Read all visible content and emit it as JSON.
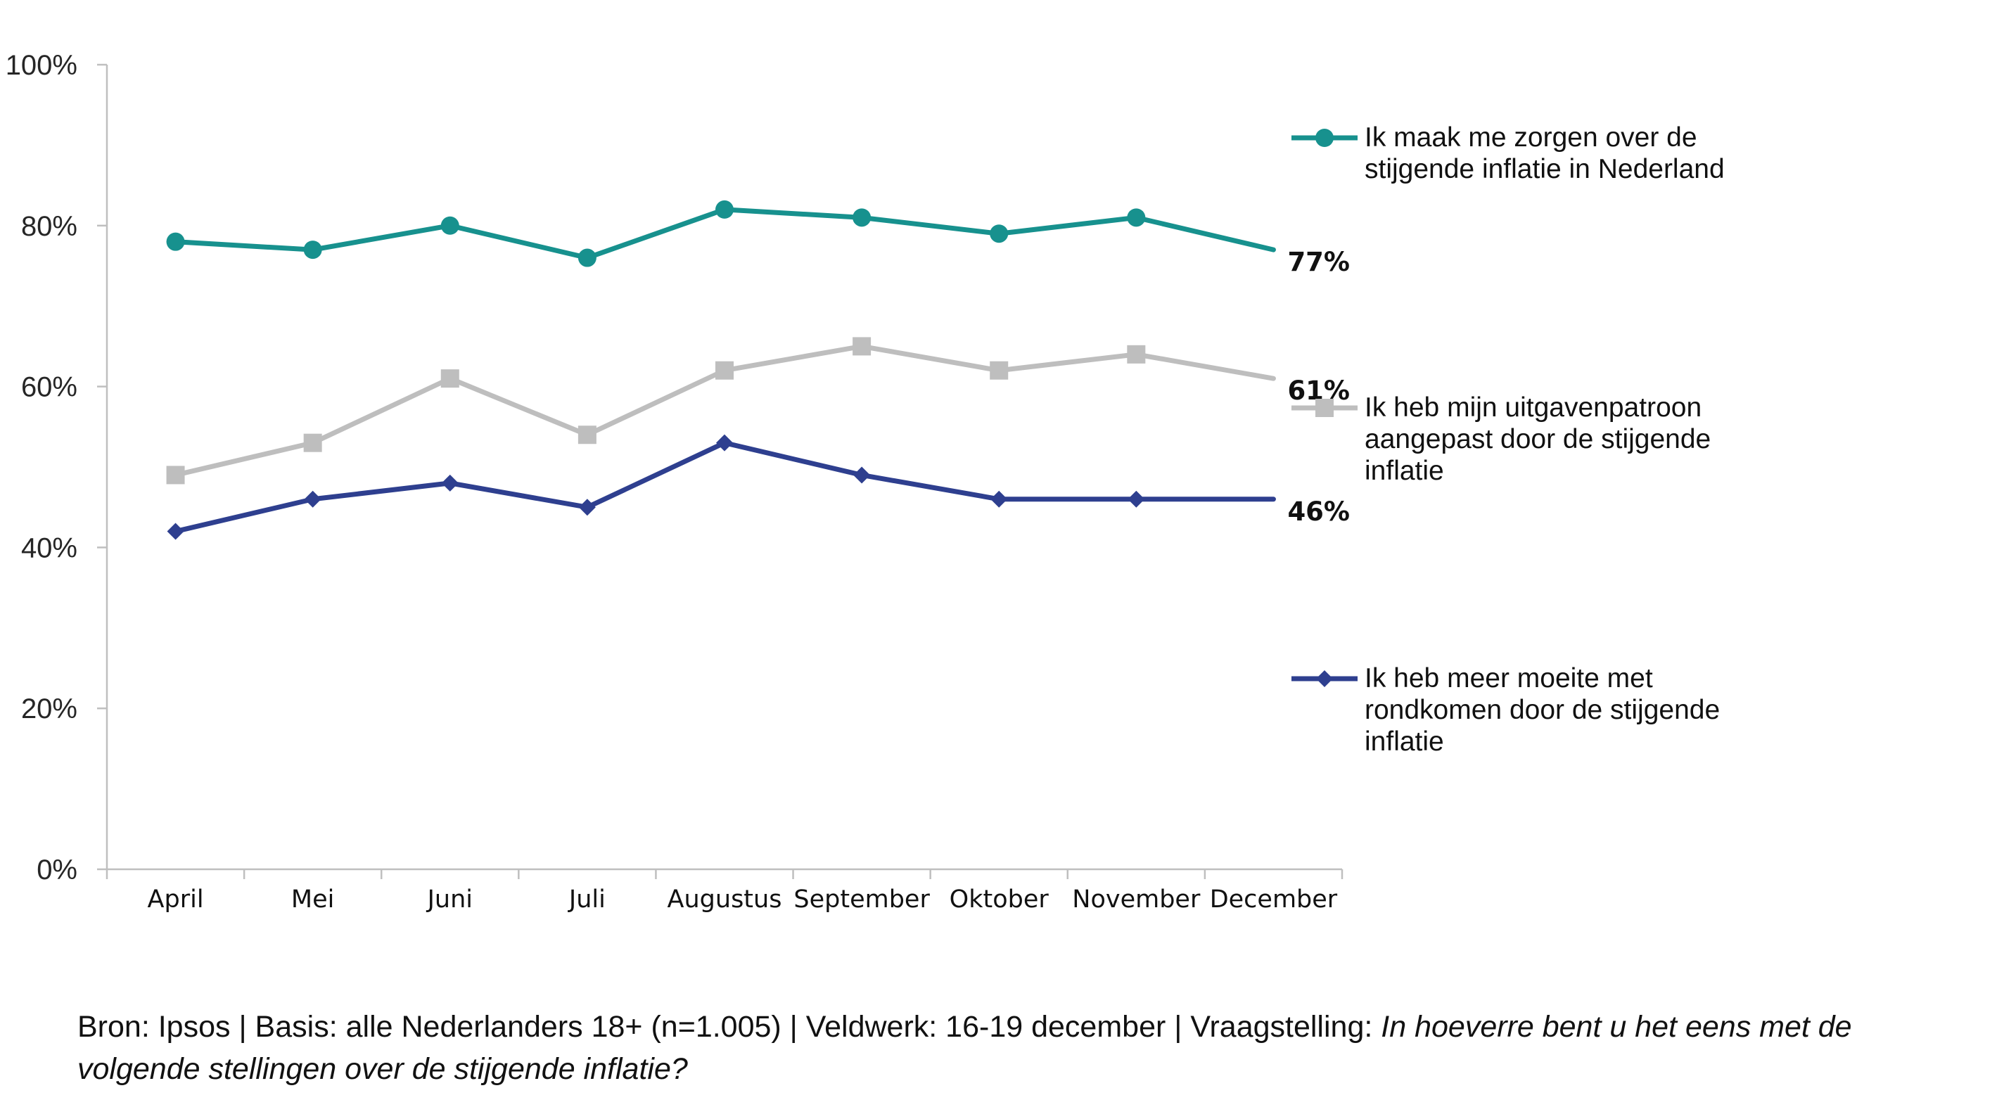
{
  "chart_data": {
    "type": "line",
    "categories": [
      "April",
      "Mei",
      "Juni",
      "Juli",
      "Augustus",
      "September",
      "Oktober",
      "November",
      "December"
    ],
    "ylim": [
      0,
      100
    ],
    "y_ticks": [
      0,
      20,
      40,
      60,
      80,
      100
    ],
    "y_tick_labels": [
      "0%",
      "20%",
      "40%",
      "60%",
      "80%",
      "100%"
    ],
    "grid": false,
    "legend_placement": "right",
    "series": [
      {
        "name": "Ik maak me zorgen over de stijgende inflatie in Nederland",
        "legend_lines": [
          "Ik maak me zorgen over de",
          "stijgende inflatie in Nederland"
        ],
        "values": [
          78,
          77,
          80,
          76,
          82,
          81,
          79,
          81,
          77
        ],
        "end_label": "77%",
        "color": "#17918E",
        "marker": "circle"
      },
      {
        "name": "Ik heb mijn uitgavenpatroon aangepast door de stijgende inflatie",
        "legend_lines": [
          "Ik heb mijn uitgavenpatroon",
          "aangepast door de stijgende",
          "inflatie"
        ],
        "values": [
          49,
          53,
          61,
          54,
          62,
          65,
          62,
          64,
          61
        ],
        "end_label": "61%",
        "color": "#BEBEBE",
        "marker": "square"
      },
      {
        "name": "Ik heb meer moeite met rondkomen door de stijgende inflatie",
        "legend_lines": [
          "Ik heb meer moeite met",
          "rondkomen door de stijgende",
          "inflatie"
        ],
        "values": [
          42,
          46,
          48,
          45,
          53,
          49,
          46,
          46,
          46
        ],
        "end_label": "46%",
        "color": "#2E3F8F",
        "marker": "diamond"
      }
    ]
  },
  "footnote": {
    "text": "Bron: Ipsos | Basis: alle Nederlanders 18+ (n=1.005) | Veldwerk: 16-19 december | Vraagstelling: ",
    "question": "In hoeverre bent u het eens met de volgende stellingen over de stijgende inflatie?"
  }
}
